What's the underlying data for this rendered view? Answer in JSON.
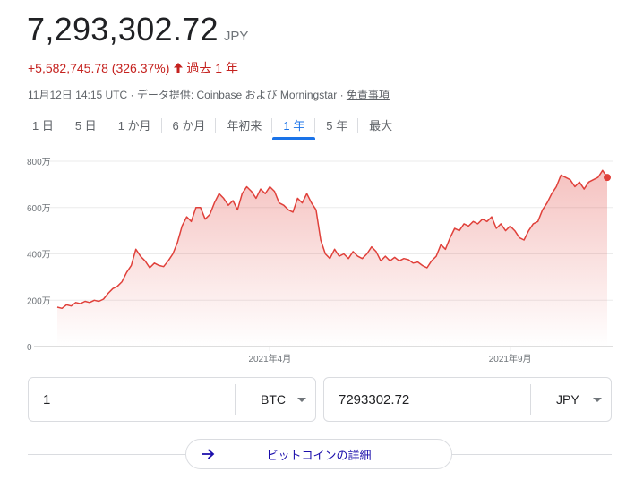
{
  "header": {
    "price": "7,293,302.72",
    "currency": "JPY",
    "change": "+5,582,745.78 (326.37%)",
    "period": "過去 1 年",
    "meta_time": "11月12日 14:15 UTC",
    "meta_provider": " · データ提供: Coinbase および Morningstar · ",
    "disclaimer": "免責事項"
  },
  "tabs": [
    {
      "label": "1 日"
    },
    {
      "label": "5 日"
    },
    {
      "label": "1 か月"
    },
    {
      "label": "6 か月"
    },
    {
      "label": "年初来"
    },
    {
      "label": "1 年",
      "active": true
    },
    {
      "label": "5 年"
    },
    {
      "label": "最大"
    }
  ],
  "chart_data": {
    "type": "line",
    "ytick_labels": [
      "800万",
      "600万",
      "400万",
      "200万",
      "0"
    ],
    "yticks": [
      8000000,
      6000000,
      4000000,
      2000000,
      0
    ],
    "ylim": [
      0,
      8000000
    ],
    "xtick_labels": [
      "2021年4月",
      "2021年9月"
    ],
    "xtick_index": [
      46,
      98
    ],
    "color": "#e0403a",
    "series": [
      {
        "values": [
          1700000,
          1650000,
          1800000,
          1750000,
          1900000,
          1850000,
          1950000,
          1900000,
          2000000,
          1950000,
          2050000,
          2300000,
          2500000,
          2600000,
          2800000,
          3200000,
          3500000,
          4200000,
          3900000,
          3700000,
          3400000,
          3600000,
          3500000,
          3450000,
          3700000,
          4000000,
          4500000,
          5200000,
          5600000,
          5400000,
          6000000,
          6000000,
          5500000,
          5700000,
          6200000,
          6600000,
          6400000,
          6100000,
          6300000,
          5900000,
          6600000,
          6900000,
          6700000,
          6400000,
          6800000,
          6600000,
          6900000,
          6700000,
          6200000,
          6100000,
          5900000,
          5800000,
          6400000,
          6200000,
          6600000,
          6200000,
          5900000,
          4600000,
          4000000,
          3800000,
          4200000,
          3900000,
          4000000,
          3800000,
          4100000,
          3900000,
          3800000,
          4000000,
          4300000,
          4100000,
          3700000,
          3900000,
          3700000,
          3850000,
          3700000,
          3800000,
          3750000,
          3600000,
          3650000,
          3500000,
          3400000,
          3700000,
          3900000,
          4400000,
          4200000,
          4700000,
          5100000,
          5000000,
          5300000,
          5200000,
          5400000,
          5300000,
          5500000,
          5400000,
          5600000,
          5100000,
          5300000,
          5000000,
          5200000,
          5000000,
          4700000,
          4600000,
          5000000,
          5300000,
          5400000,
          5900000,
          6200000,
          6600000,
          6900000,
          7400000,
          7300000,
          7200000,
          6900000,
          7100000,
          6800000,
          7100000,
          7200000,
          7300000,
          7600000,
          7300000
        ]
      }
    ]
  },
  "converter": {
    "left_value": "1",
    "left_unit": "BTC",
    "right_value": "7293302.72",
    "right_unit": "JPY"
  },
  "details_button": "ビットコインの詳細"
}
